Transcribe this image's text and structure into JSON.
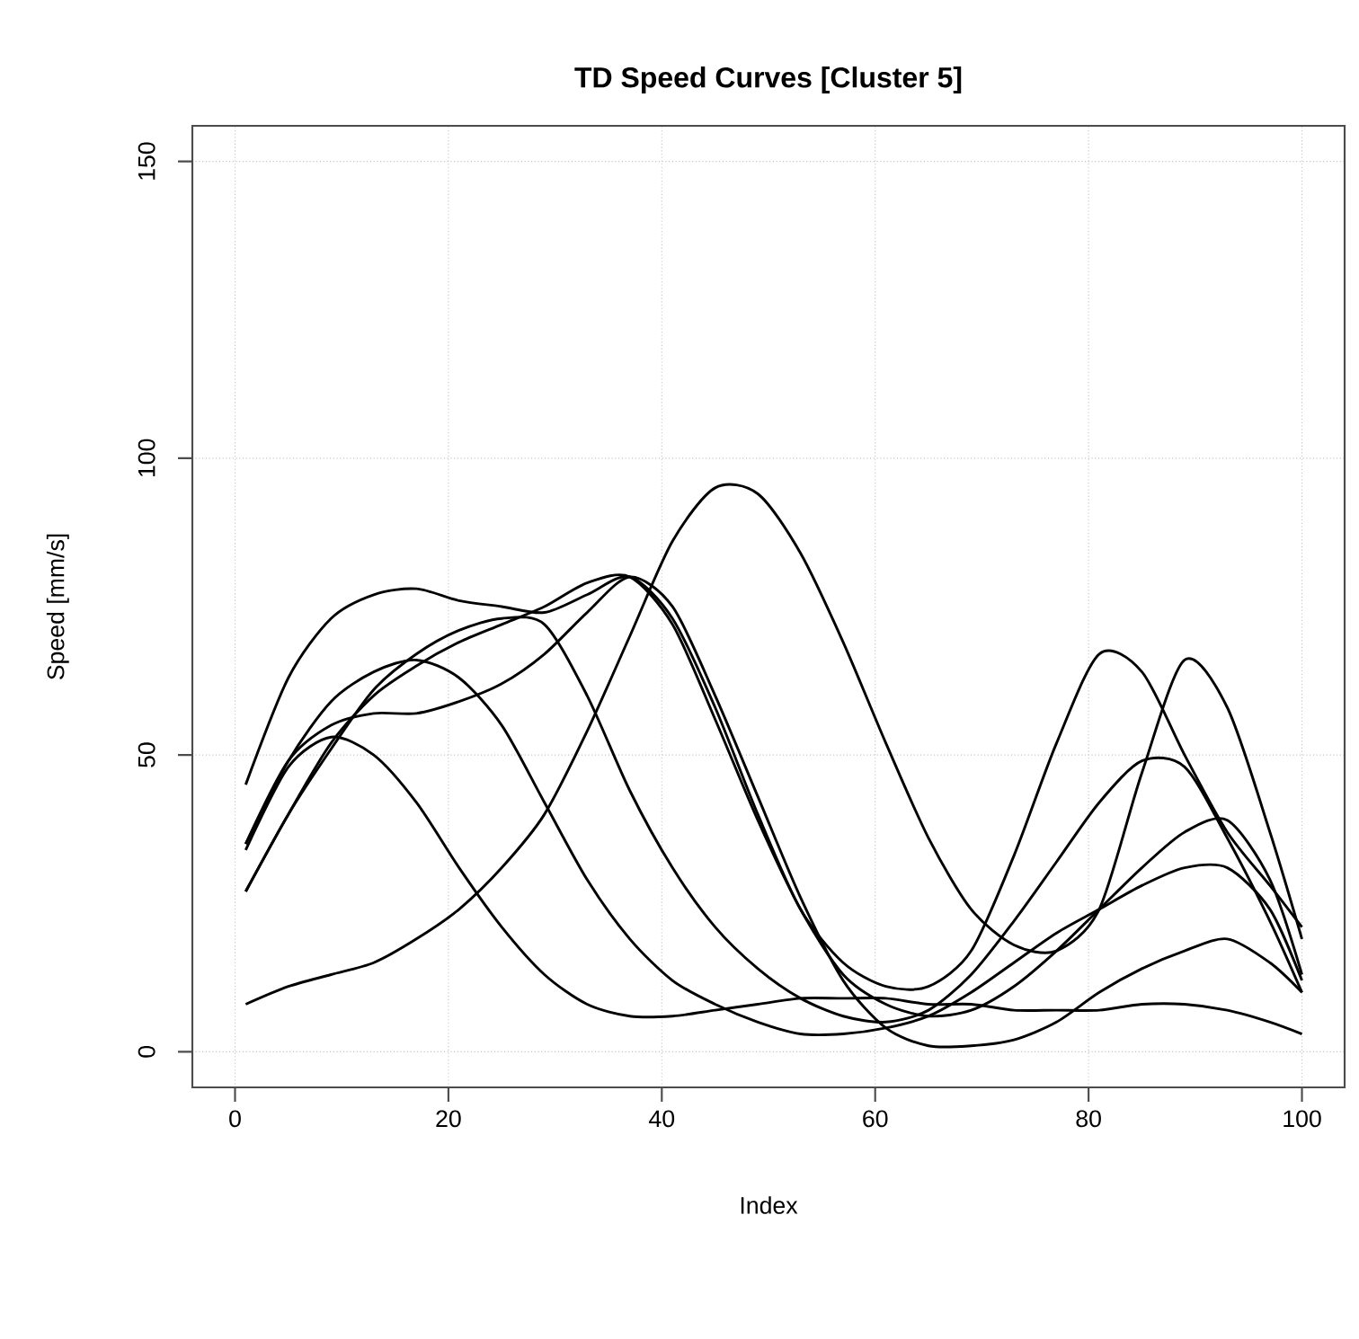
{
  "chart_data": {
    "type": "line",
    "title": "TD Speed Curves [Cluster 5]",
    "xlabel": "Index",
    "ylabel": "Speed [mm/s]",
    "x": [
      1,
      5,
      9,
      13,
      17,
      21,
      25,
      29,
      33,
      37,
      41,
      45,
      49,
      53,
      57,
      61,
      65,
      69,
      73,
      77,
      81,
      85,
      89,
      93,
      97,
      100
    ],
    "series": [
      {
        "color": "#000000",
        "values": [
          45,
          63,
          73,
          77,
          78,
          76,
          75,
          74,
          77,
          80,
          73,
          58,
          40,
          24,
          15,
          11,
          11,
          17,
          33,
          52,
          67,
          64,
          50,
          37,
          28,
          21
        ]
      },
      {
        "color": "#000000",
        "values": [
          8,
          11,
          13,
          15,
          19,
          24,
          31,
          40,
          54,
          70,
          86,
          95,
          94,
          84,
          69,
          52,
          36,
          24,
          18,
          17,
          24,
          47,
          66,
          58,
          37,
          19
        ]
      },
      {
        "color": "#000000",
        "values": [
          34,
          48,
          53,
          50,
          42,
          31,
          21,
          13,
          8,
          6,
          6,
          7,
          8,
          9,
          9,
          9,
          8,
          8,
          7,
          7,
          7,
          8,
          8,
          7,
          5,
          3
        ]
      },
      {
        "color": "#000000",
        "values": [
          35,
          49,
          55,
          57,
          57,
          59,
          62,
          67,
          74,
          80,
          75,
          60,
          43,
          26,
          12,
          4,
          1,
          1,
          2,
          5,
          10,
          14,
          17,
          19,
          15,
          10
        ]
      },
      {
        "color": "#000000",
        "values": [
          35,
          49,
          59,
          64,
          66,
          63,
          55,
          42,
          29,
          19,
          12,
          8,
          5,
          3,
          3,
          4,
          6,
          10,
          15,
          20,
          24,
          28,
          31,
          31,
          24,
          12
        ]
      },
      {
        "color": "#000000",
        "values": [
          27,
          40,
          51,
          61,
          67,
          71,
          73,
          72,
          60,
          44,
          31,
          21,
          14,
          9,
          6,
          5,
          7,
          13,
          22,
          32,
          42,
          49,
          48,
          36,
          22,
          10
        ]
      },
      {
        "color": "#000000",
        "values": [
          27,
          40,
          52,
          60,
          65,
          69,
          72,
          75,
          79,
          80,
          72,
          56,
          39,
          24,
          13,
          8,
          6,
          7,
          11,
          17,
          24,
          31,
          37,
          39,
          29,
          13
        ]
      }
    ],
    "xlim": [
      -4,
      104
    ],
    "ylim": [
      -6,
      156
    ],
    "xticks": [
      0,
      20,
      40,
      60,
      80,
      100
    ],
    "yticks": [
      0,
      50,
      100,
      150
    ],
    "grid": true,
    "marker": "none",
    "line_style": "solid"
  }
}
